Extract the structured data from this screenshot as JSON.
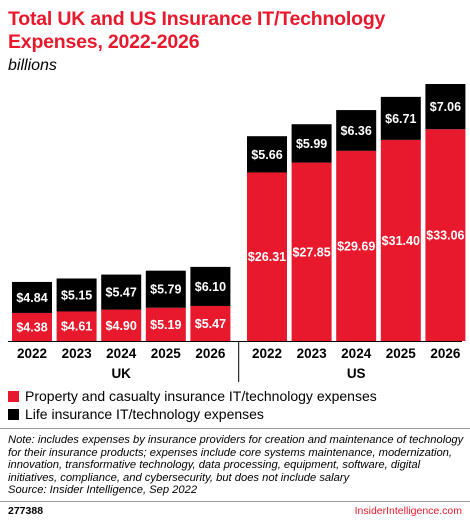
{
  "title": "Total UK and US Insurance IT/Technology Expenses, 2022-2026",
  "subtitle": "billions",
  "chart_data": {
    "type": "bar",
    "stacked": true,
    "groups": [
      {
        "name": "UK",
        "categories": [
          "2022",
          "2023",
          "2024",
          "2025",
          "2026"
        ]
      },
      {
        "name": "US",
        "categories": [
          "2022",
          "2023",
          "2024",
          "2025",
          "2026"
        ]
      }
    ],
    "series": [
      {
        "name": "Property and casualty insurance IT/technology expenses",
        "color": "#e8192c",
        "values": [
          4.38,
          4.61,
          4.9,
          5.19,
          5.47,
          26.31,
          27.85,
          29.69,
          31.4,
          33.06
        ],
        "labels": [
          "$4.38",
          "$4.61",
          "$4.90",
          "$5.19",
          "$5.47",
          "$26.31",
          "$27.85",
          "$29.69",
          "$31.40",
          "$33.06"
        ]
      },
      {
        "name": "Life insurance IT/technology expenses",
        "color": "#000000",
        "values": [
          4.84,
          5.15,
          5.47,
          5.79,
          6.1,
          5.66,
          5.99,
          6.36,
          6.71,
          7.06
        ],
        "labels": [
          "$4.84",
          "$5.15",
          "$5.47",
          "$5.79",
          "$6.10",
          "$5.66",
          "$5.99",
          "$6.36",
          "$6.71",
          "$7.06"
        ]
      }
    ],
    "ylim": [
      0,
      40.12
    ],
    "grid": false,
    "legend_position": "bottom-left"
  },
  "legend": [
    {
      "label": "Property and casualty insurance IT/technology expenses",
      "color": "#e8192c"
    },
    {
      "label": "Life insurance IT/technology expenses",
      "color": "#000000"
    }
  ],
  "note": "Note: includes expenses by insurance providers for creation and maintenance of technology for their insurance products; expenses include core systems maintenance, modernization, innovation, transformative technology, data processing, equipment, software, digital initiatives, compliance, and cybersecurity, but does not include salary",
  "source": "Source: Insider Intelligence, Sep 2022",
  "footer": {
    "id": "277388",
    "brand": "InsiderIntelligence.com"
  }
}
